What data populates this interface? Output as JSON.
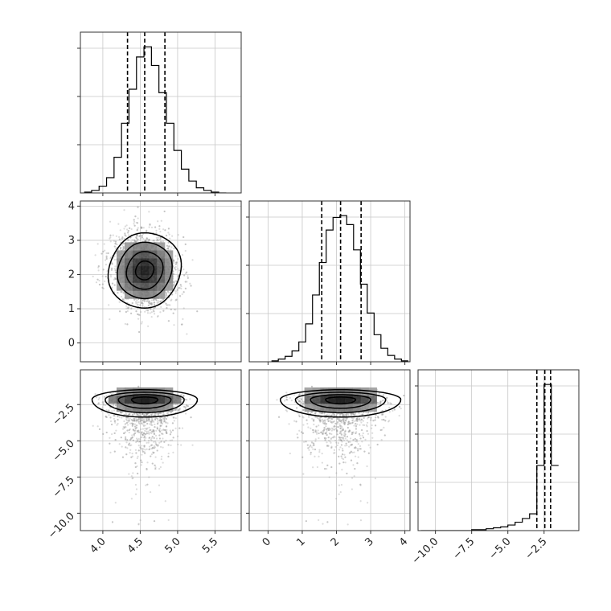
{
  "chart_data": {
    "type": "corner",
    "params": [
      {
        "xlim": [
          3.7,
          5.85
        ],
        "ylim": [
          -0.55,
          4.15
        ],
        "ticks": [
          4.0,
          4.5,
          5.0,
          5.5
        ],
        "tick_labels": [
          "4.0",
          "4.5",
          "5.0",
          "5.5"
        ],
        "mean": 4.56,
        "sd": 0.22,
        "quantiles": [
          4.33,
          4.56,
          4.83
        ]
      },
      {
        "xlim": [
          -0.55,
          4.15
        ],
        "ylim": [
          -0.55,
          4.15
        ],
        "ticks": [
          0,
          1,
          2,
          3,
          4
        ],
        "tick_labels": [
          "0",
          "1",
          "2",
          "3",
          "4"
        ],
        "mean": 2.12,
        "sd": 0.55,
        "quantiles": [
          1.57,
          2.12,
          2.72
        ]
      },
      {
        "xlim": [
          -11.2,
          -0.1
        ],
        "ylim": [
          -11.2,
          -0.1
        ],
        "ticks": [
          -10.0,
          -7.5,
          -5.0,
          -2.5
        ],
        "tick_labels": [
          "−10.0",
          "−7.5",
          "−5.0",
          "−2.5"
        ],
        "mean": -2.3,
        "sd": 0.35,
        "quantiles": [
          -3.0,
          -2.45,
          -2.05
        ]
      }
    ],
    "histograms": [
      {
        "param": 0,
        "bin_edges": [
          3.75,
          3.85,
          3.95,
          4.05,
          4.15,
          4.25,
          4.35,
          4.45,
          4.55,
          4.65,
          4.75,
          4.85,
          4.95,
          5.05,
          5.15,
          5.25,
          5.35,
          5.45,
          5.55,
          5.65
        ],
        "counts": [
          1,
          3,
          8,
          18,
          42,
          82,
          122,
          160,
          172,
          150,
          118,
          82,
          50,
          28,
          14,
          6,
          3,
          1,
          0
        ]
      },
      {
        "param": 1,
        "bin_edges": [
          0.1,
          0.3,
          0.5,
          0.7,
          0.9,
          1.1,
          1.3,
          1.5,
          1.7,
          1.9,
          2.1,
          2.3,
          2.5,
          2.7,
          2.9,
          3.1,
          3.3,
          3.5,
          3.7,
          3.9,
          4.1
        ],
        "counts": [
          1,
          3,
          6,
          12,
          22,
          42,
          74,
          110,
          146,
          160,
          162,
          152,
          124,
          86,
          54,
          30,
          15,
          7,
          3,
          1
        ]
      },
      {
        "param": 2,
        "bin_edges": [
          -11.0,
          -10.5,
          -10.0,
          -9.5,
          -9.0,
          -8.5,
          -8.0,
          -7.5,
          -7.0,
          -6.5,
          -6.0,
          -5.5,
          -5.0,
          -4.5,
          -4.0,
          -3.5,
          -3.0,
          -2.5,
          -2.0,
          -1.5
        ],
        "counts": [
          0,
          0,
          0,
          0,
          0,
          0,
          0,
          1,
          1,
          2,
          3,
          4,
          6,
          9,
          13,
          18,
          70,
          157,
          70
        ]
      }
    ],
    "pairs": [
      {
        "x_param": 0,
        "y_param": 1
      },
      {
        "x_param": 0,
        "y_param": 2
      },
      {
        "x_param": 1,
        "y_param": 2
      }
    ],
    "colors": {
      "scatter": "#9a9a9a",
      "contour": "#000000",
      "grid": "#c8c8c8"
    },
    "grid": true
  }
}
